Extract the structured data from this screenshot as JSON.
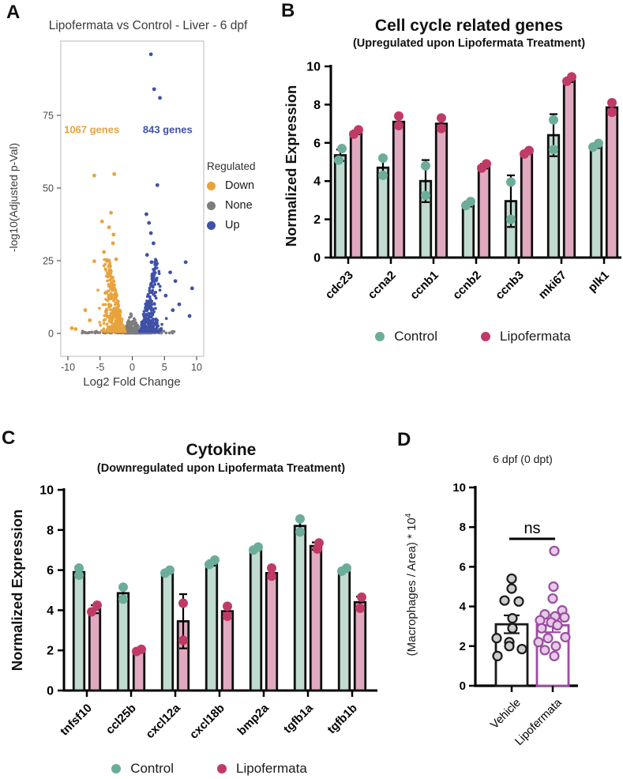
{
  "figure_background": "#FFFFFF",
  "chart_data": [
    {
      "panel": "A",
      "type": "scatter",
      "title": "Lipofermata vs Control - Liver - 6 dpf",
      "xlabel": "Log2 Fold Change",
      "ylabel": "-log10(Adjusted p-Val)",
      "xlim": [
        -11,
        11
      ],
      "xticks": [
        -10,
        -5,
        0,
        5,
        10
      ],
      "ylim": [
        -8,
        100
      ],
      "yticks": [
        0,
        25,
        50,
        75
      ],
      "grid": false,
      "legend": {
        "title": "Regulated",
        "position": "right",
        "items": [
          {
            "label": "Down",
            "color": "#E8A33D"
          },
          {
            "label": "None",
            "color": "#7D7D7D"
          },
          {
            "label": "Up",
            "color": "#3F51A8"
          }
        ]
      },
      "annotations": [
        {
          "text": "1067 genes",
          "x": -6.3,
          "y": 70,
          "color": "#E8A33D"
        },
        {
          "text": "843 genes",
          "x": 5.5,
          "y": 70,
          "color": "#3F51A8"
        }
      ],
      "series": {
        "down": {
          "label": "Down",
          "color": "#E8A33D",
          "gene_count": 1067,
          "cloud_n": 430,
          "outliers": [
            [
              -5.9,
              54.3
            ],
            [
              -2.8,
              54.8
            ],
            [
              -3.3,
              41.5
            ],
            [
              -4.7,
              38.5
            ],
            [
              -3.6,
              36.5
            ],
            [
              -2.9,
              34
            ],
            [
              -3.0,
              31
            ],
            [
              -4.4,
              28
            ],
            [
              -5.9,
              24.8
            ],
            [
              -2.5,
              25.5
            ],
            [
              -7.3,
              8
            ],
            [
              -9.4,
              1.8
            ],
            [
              -8.8,
              1.5
            ],
            [
              -6.6,
              4.5
            ]
          ]
        },
        "none": {
          "label": "None",
          "color": "#7D7D7D",
          "cloud_n": 590,
          "outliers": []
        },
        "up": {
          "label": "Up",
          "color": "#3F51A8",
          "gene_count": 843,
          "cloud_n": 350,
          "outliers": [
            [
              2.9,
              96
            ],
            [
              3.4,
              84
            ],
            [
              4.3,
              81
            ],
            [
              3.9,
              51
            ],
            [
              2.2,
              41
            ],
            [
              2.6,
              38
            ],
            [
              2.9,
              34.5
            ],
            [
              3.3,
              31
            ],
            [
              2.3,
              27
            ],
            [
              3.0,
              24.5
            ],
            [
              8.3,
              24.5
            ],
            [
              9.3,
              15.5
            ],
            [
              6.7,
              18
            ],
            [
              5.9,
              21
            ],
            [
              5.2,
              13
            ],
            [
              7.3,
              10
            ],
            [
              8.9,
              6
            ],
            [
              6.3,
              8
            ]
          ]
        }
      },
      "seed": 42
    },
    {
      "panel": "B",
      "type": "bar",
      "title": "Cell cycle related genes",
      "subtitle": "(Upregulated upon Lipofermata Treatment)",
      "ylabel": "Normalized Expression",
      "ylim": [
        0,
        10
      ],
      "yticks": [
        0,
        2,
        4,
        6,
        8,
        10
      ],
      "categories": [
        "cdc23",
        "ccna2",
        "ccnb1",
        "ccnb2",
        "ccnb3",
        "mki67",
        "plk1"
      ],
      "series": [
        {
          "name": "Control",
          "bar_fill": "#C0DBD0",
          "point_color": "#6CAC9B",
          "outline": "#0F0F0F",
          "values": [
            5.35,
            4.7,
            4.0,
            2.8,
            2.95,
            6.4,
            5.85
          ],
          "errors": [
            0.3,
            0.45,
            1.1,
            0.13,
            1.35,
            1.1,
            0.12
          ],
          "points": [
            [
              [
                -2,
                5.1
              ],
              [
                2,
                5.7
              ]
            ],
            [
              [
                0,
                4.3
              ],
              [
                0,
                5.2
              ]
            ],
            [
              [
                0,
                3.25
              ],
              [
                0,
                4.8
              ]
            ],
            [
              [
                -3,
                2.72
              ],
              [
                3,
                2.93
              ]
            ],
            [
              [
                0,
                2.0
              ],
              [
                0,
                3.95
              ]
            ],
            [
              [
                0,
                5.65
              ],
              [
                0,
                7.2
              ]
            ],
            [
              [
                -4,
                5.78
              ],
              [
                3,
                5.97
              ]
            ]
          ]
        },
        {
          "name": "Lipofermata",
          "bar_fill": "#E0A9BF",
          "point_color": "#C03A66",
          "outline": "#0F0F0F",
          "values": [
            6.55,
            7.1,
            7.0,
            4.78,
            5.5,
            9.3,
            7.85
          ],
          "errors": [
            0.1,
            0.25,
            0.3,
            0.12,
            0.1,
            0.12,
            0.25
          ],
          "points": [
            [
              [
                -3,
                6.45
              ],
              [
                3,
                6.68
              ]
            ],
            [
              [
                0,
                6.9
              ],
              [
                0,
                7.4
              ]
            ],
            [
              [
                0,
                6.75
              ],
              [
                0,
                7.3
              ]
            ],
            [
              [
                -3,
                4.68
              ],
              [
                3,
                4.9
              ]
            ],
            [
              [
                -3,
                5.42
              ],
              [
                3,
                5.6
              ]
            ],
            [
              [
                -3,
                9.22
              ],
              [
                3,
                9.45
              ]
            ],
            [
              [
                0,
                7.6
              ],
              [
                0,
                8.1
              ]
            ]
          ]
        }
      ],
      "legend": [
        {
          "label": "Control",
          "color": "#6CAC9B"
        },
        {
          "label": "Lipofermata",
          "color": "#C03A66"
        }
      ]
    },
    {
      "panel": "C",
      "type": "bar",
      "title": "Cytokine",
      "subtitle": "(Downregulated upon Lipofermata Treatment)",
      "ylabel": "Normalized Expression",
      "ylim": [
        0,
        10
      ],
      "yticks": [
        0,
        2,
        4,
        6,
        8,
        10
      ],
      "categories": [
        "tnfsf10",
        "ccl25b",
        "cxcl12a",
        "cxcl18b",
        "bmp2a",
        "tgfb1a",
        "tgfb1b"
      ],
      "series": [
        {
          "name": "Control",
          "bar_fill": "#C0DBD0",
          "point_color": "#6CAC9B",
          "outline": "#0F0F0F",
          "values": [
            5.9,
            4.85,
            5.9,
            6.35,
            7.05,
            8.2,
            6.0
          ],
          "errors": [
            0.18,
            0.3,
            0.08,
            0.13,
            0.08,
            0.33,
            0.08
          ],
          "points": [
            [
              [
                0,
                5.75
              ],
              [
                0,
                6.1
              ]
            ],
            [
              [
                0,
                4.55
              ],
              [
                0,
                5.15
              ]
            ],
            [
              [
                -3,
                5.85
              ],
              [
                3,
                6.0
              ]
            ],
            [
              [
                -3,
                6.28
              ],
              [
                4,
                6.5
              ]
            ],
            [
              [
                -3,
                7.0
              ],
              [
                3,
                7.15
              ]
            ],
            [
              [
                0,
                7.9
              ],
              [
                0,
                8.55
              ]
            ],
            [
              [
                -3,
                5.95
              ],
              [
                3,
                6.1
              ]
            ]
          ]
        },
        {
          "name": "Lipofermata",
          "bar_fill": "#E0A9BF",
          "point_color": "#C03A66",
          "outline": "#0F0F0F",
          "values": [
            4.05,
            2.0,
            3.45,
            3.95,
            5.85,
            7.2,
            4.4
          ],
          "errors": [
            0.2,
            0.05,
            1.35,
            0.25,
            0.22,
            0.18,
            0.28
          ],
          "points": [
            [
              [
                -4,
                3.92
              ],
              [
                3,
                4.25
              ]
            ],
            [
              [
                -3,
                1.95
              ],
              [
                3,
                2.05
              ]
            ],
            [
              [
                0,
                2.5
              ],
              [
                0,
                4.35
              ]
            ],
            [
              [
                0,
                3.7
              ],
              [
                0,
                4.2
              ]
            ],
            [
              [
                0,
                5.7
              ],
              [
                0,
                6.1
              ]
            ],
            [
              [
                2,
                7.05
              ],
              [
                4,
                7.35
              ]
            ],
            [
              [
                0,
                4.1
              ],
              [
                2,
                4.65
              ]
            ]
          ]
        }
      ],
      "legend": [
        {
          "label": "Control",
          "color": "#6CAC9B"
        },
        {
          "label": "Lipofermata",
          "color": "#C03A66"
        }
      ]
    },
    {
      "panel": "D",
      "type": "bar-scatter",
      "title": "6 dpf (0 dpt)",
      "ylabel_main": "(Macrophages / Area) * 10",
      "ylabel_sup": "4",
      "ylim": [
        0,
        10
      ],
      "yticks": [
        0,
        2,
        4,
        6,
        8,
        10
      ],
      "significance": "ns",
      "groups": [
        {
          "label": "Vehicle",
          "color": "#1A1A1A",
          "bar_fill": "#FFFFFF",
          "point_fill": "#CCCCCC",
          "mean": 3.1,
          "error": 0.45,
          "points": [
            [
              0,
              5.4
            ],
            [
              0,
              4.9
            ],
            [
              -9,
              4.3
            ],
            [
              9,
              4.25
            ],
            [
              1,
              3.4
            ],
            [
              1,
              2.9
            ],
            [
              -19,
              2.4
            ],
            [
              -3,
              2.2
            ],
            [
              -3,
              2.0
            ],
            [
              13,
              1.85
            ],
            [
              -18,
              1.5
            ]
          ]
        },
        {
          "label": "Lipofermata",
          "color": "#9B4DA1",
          "bar_fill": "#FFFFFF",
          "point_fill": "#E3CCE6",
          "mean": 3.05,
          "error": 0.35,
          "points": [
            [
              2,
              6.8
            ],
            [
              1,
              5.0
            ],
            [
              0,
              4.4
            ],
            [
              12,
              3.8
            ],
            [
              -10,
              3.6
            ],
            [
              3,
              3.5
            ],
            [
              15,
              3.45
            ],
            [
              -16,
              3.3
            ],
            [
              -2,
              3.2
            ],
            [
              6,
              3.05
            ],
            [
              -14,
              2.9
            ],
            [
              16,
              2.45
            ],
            [
              -6,
              2.4
            ],
            [
              -18,
              2.2
            ],
            [
              4,
              2.0
            ],
            [
              -10,
              1.8
            ],
            [
              2,
              1.5
            ]
          ]
        }
      ]
    }
  ]
}
